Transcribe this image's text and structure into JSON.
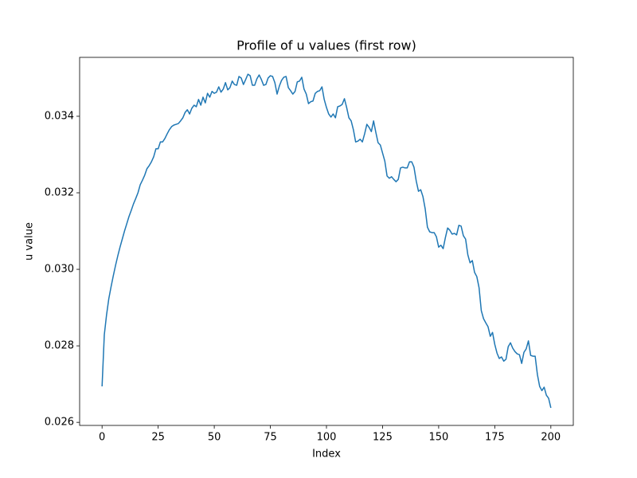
{
  "chart_data": {
    "type": "line",
    "title": "Profile of u values (first row)",
    "xlabel": "Index",
    "ylabel": "u value",
    "x": [
      0,
      1,
      2,
      3,
      4,
      5,
      6,
      7,
      8,
      9,
      10,
      11,
      12,
      13,
      14,
      15,
      16,
      17,
      18,
      19,
      20,
      21,
      22,
      23,
      24,
      25,
      26,
      27,
      28,
      29,
      30,
      31,
      32,
      33,
      34,
      35,
      36,
      37,
      38,
      39,
      40,
      41,
      42,
      43,
      44,
      45,
      46,
      47,
      48,
      49,
      50,
      51,
      52,
      53,
      54,
      55,
      56,
      57,
      58,
      59,
      60,
      61,
      62,
      63,
      64,
      65,
      66,
      67,
      68,
      69,
      70,
      71,
      72,
      73,
      74,
      75,
      76,
      77,
      78,
      79,
      80,
      81,
      82,
      83,
      84,
      85,
      86,
      87,
      88,
      89,
      90,
      91,
      92,
      93,
      94,
      95,
      96,
      97,
      98,
      99,
      100,
      101,
      102,
      103,
      104,
      105,
      106,
      107,
      108,
      109,
      110,
      111,
      112,
      113,
      114,
      115,
      116,
      117,
      118,
      119,
      120,
      121,
      122,
      123,
      124,
      125,
      126,
      127,
      128,
      129,
      130,
      131,
      132,
      133,
      134,
      135,
      136,
      137,
      138,
      139,
      140,
      141,
      142,
      143,
      144,
      145,
      146,
      147,
      148,
      149,
      150,
      151,
      152,
      153,
      154,
      155,
      156,
      157,
      158,
      159,
      160,
      161,
      162,
      163,
      164,
      165,
      166,
      167,
      168,
      169,
      170,
      171,
      172,
      173,
      174,
      175,
      176,
      177,
      178,
      179,
      180,
      181,
      182,
      183,
      184,
      185,
      186,
      187,
      188,
      189,
      190,
      191,
      192,
      193,
      194,
      195,
      196,
      197,
      198,
      199,
      200
    ],
    "series": [
      {
        "name": "u",
        "color": "#1f77b4",
        "values": [
          0.02694,
          0.02829,
          0.02881,
          0.02923,
          0.02954,
          0.02983,
          0.0301,
          0.03035,
          0.03058,
          0.03079,
          0.031,
          0.03119,
          0.03138,
          0.03154,
          0.03171,
          0.03185,
          0.032,
          0.03221,
          0.03233,
          0.03246,
          0.03263,
          0.03271,
          0.03281,
          0.03294,
          0.03315,
          0.03315,
          0.03333,
          0.03333,
          0.03342,
          0.03354,
          0.03365,
          0.03373,
          0.03377,
          0.03379,
          0.03381,
          0.03388,
          0.03396,
          0.0341,
          0.03417,
          0.03406,
          0.03421,
          0.03429,
          0.03425,
          0.03444,
          0.03429,
          0.0345,
          0.03435,
          0.0346,
          0.0345,
          0.03465,
          0.0346,
          0.03463,
          0.03477,
          0.03463,
          0.03471,
          0.03488,
          0.03469,
          0.03475,
          0.03492,
          0.03483,
          0.03481,
          0.03504,
          0.035,
          0.03483,
          0.03496,
          0.0351,
          0.03506,
          0.03481,
          0.03481,
          0.03498,
          0.03508,
          0.03496,
          0.03481,
          0.03483,
          0.035,
          0.03506,
          0.03504,
          0.03488,
          0.03458,
          0.03479,
          0.03494,
          0.03502,
          0.03504,
          0.03475,
          0.03467,
          0.03458,
          0.03465,
          0.0349,
          0.03492,
          0.03502,
          0.03471,
          0.03458,
          0.03433,
          0.03438,
          0.0344,
          0.0346,
          0.03465,
          0.03467,
          0.03477,
          0.03444,
          0.03423,
          0.03406,
          0.03398,
          0.03406,
          0.03396,
          0.03425,
          0.03427,
          0.03431,
          0.03446,
          0.03423,
          0.03396,
          0.03388,
          0.03365,
          0.03333,
          0.03335,
          0.0334,
          0.03333,
          0.03354,
          0.03379,
          0.03371,
          0.0336,
          0.03388,
          0.03358,
          0.03331,
          0.03325,
          0.03304,
          0.03283,
          0.03244,
          0.03238,
          0.03242,
          0.03235,
          0.03229,
          0.03235,
          0.03265,
          0.03267,
          0.03265,
          0.03265,
          0.03281,
          0.03281,
          0.03267,
          0.03231,
          0.03204,
          0.03208,
          0.0319,
          0.03158,
          0.0311,
          0.03098,
          0.03096,
          0.03096,
          0.03085,
          0.03058,
          0.03063,
          0.03054,
          0.03083,
          0.03108,
          0.03102,
          0.03092,
          0.03094,
          0.0309,
          0.03115,
          0.03113,
          0.03088,
          0.03079,
          0.03038,
          0.03017,
          0.03023,
          0.02992,
          0.02981,
          0.02952,
          0.02892,
          0.02871,
          0.0286,
          0.0285,
          0.02825,
          0.02835,
          0.02804,
          0.02781,
          0.02767,
          0.02771,
          0.0276,
          0.02765,
          0.02798,
          0.02808,
          0.02794,
          0.02785,
          0.02779,
          0.02777,
          0.02754,
          0.02783,
          0.02792,
          0.02813,
          0.02775,
          0.02773,
          0.02773,
          0.02725,
          0.02694,
          0.02683,
          0.02692,
          0.02671,
          0.02663,
          0.02638
        ]
      }
    ],
    "xlim": [
      -10,
      210
    ],
    "xticks": [
      0,
      25,
      50,
      75,
      100,
      125,
      150,
      175,
      200
    ],
    "ylim": [
      0.02592,
      0.03554
    ],
    "yticks": [
      0.026,
      0.028,
      {
        "value": 0.03,
        "label": "0.030"
      },
      0.032,
      0.034
    ],
    "grid": false
  }
}
